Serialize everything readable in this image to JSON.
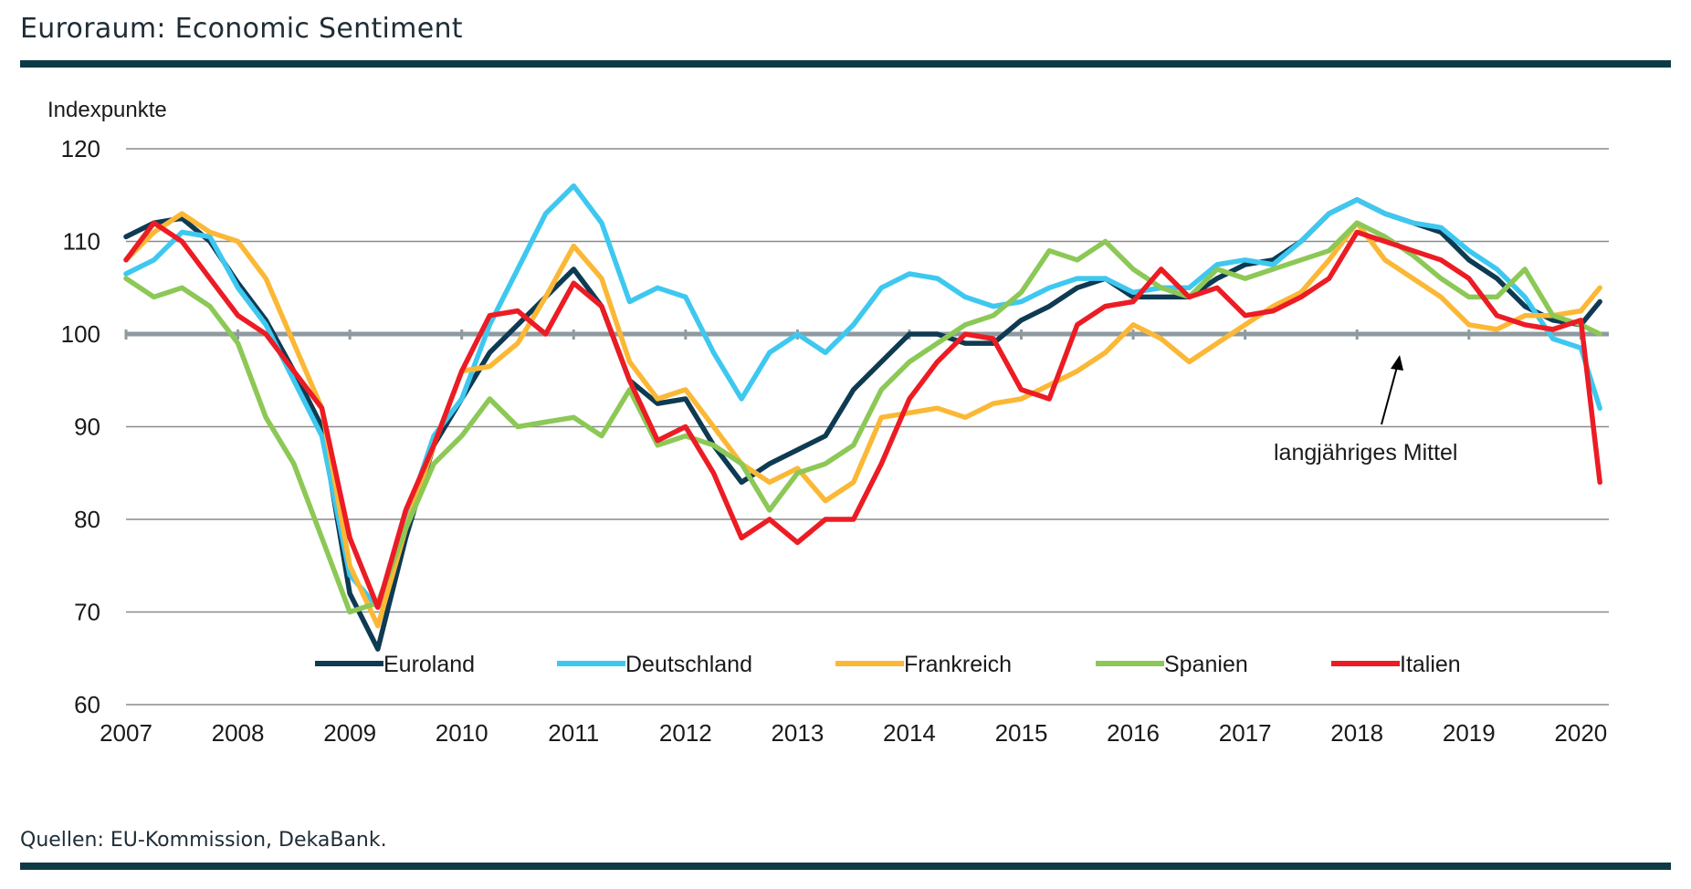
{
  "header": {
    "title": "Euroraum: Economic Sentiment"
  },
  "footer": {
    "source": "Quellen: EU-Kommission, DekaBank."
  },
  "chart_data": {
    "type": "line",
    "title": "Euroraum: Economic Sentiment",
    "ylabel": "Indexpunkte",
    "xlabel": "",
    "ylim": [
      60,
      120
    ],
    "xlim": [
      2007.0,
      2020.25
    ],
    "yticks": [
      60,
      70,
      80,
      90,
      100,
      110,
      120
    ],
    "xticks": [
      "2007",
      "2008",
      "2009",
      "2010",
      "2011",
      "2012",
      "2013",
      "2014",
      "2015",
      "2016",
      "2017",
      "2018",
      "2019",
      "2020"
    ],
    "grid": true,
    "legend_placement": "bottom",
    "reference_line": {
      "value": 100,
      "label": "langjähriges Mittel"
    },
    "x": [
      2007.0,
      2007.25,
      2007.5,
      2007.75,
      2008.0,
      2008.25,
      2008.5,
      2008.75,
      2009.0,
      2009.25,
      2009.5,
      2009.75,
      2010.0,
      2010.25,
      2010.5,
      2010.75,
      2011.0,
      2011.25,
      2011.5,
      2011.75,
      2012.0,
      2012.25,
      2012.5,
      2012.75,
      2013.0,
      2013.25,
      2013.5,
      2013.75,
      2014.0,
      2014.25,
      2014.5,
      2014.75,
      2015.0,
      2015.25,
      2015.5,
      2015.75,
      2016.0,
      2016.25,
      2016.5,
      2016.75,
      2017.0,
      2017.25,
      2017.5,
      2017.75,
      2018.0,
      2018.25,
      2018.5,
      2018.75,
      2019.0,
      2019.25,
      2019.5,
      2019.75,
      2020.0,
      2020.17
    ],
    "series": [
      {
        "name": "Euroland",
        "color": "#0e3a52",
        "values": [
          110.5,
          112,
          112.5,
          110,
          105.5,
          101.5,
          96,
          90,
          72,
          66,
          78,
          88,
          93,
          98,
          101,
          104,
          107,
          103,
          95,
          92.5,
          93,
          88,
          84,
          86,
          87.5,
          89,
          94,
          97,
          100,
          100,
          99,
          99,
          101.5,
          103,
          105,
          106,
          104,
          104,
          104,
          106,
          107.5,
          108,
          110,
          113,
          114.5,
          113,
          112,
          111,
          108,
          106,
          103,
          101.5,
          101,
          103.5
        ]
      },
      {
        "name": "Deutschland",
        "color": "#3ec8f0",
        "values": [
          106.5,
          108,
          111,
          110.5,
          105,
          101,
          95,
          89,
          74,
          70.5,
          80,
          89,
          93,
          101,
          107,
          113,
          116,
          112,
          103.5,
          105,
          104,
          98,
          93,
          98,
          100,
          98,
          101,
          105,
          106.5,
          106,
          104,
          103,
          103.5,
          105,
          106,
          106,
          104.5,
          105,
          105,
          107.5,
          108,
          107.5,
          110,
          113,
          114.5,
          113,
          112,
          111.5,
          109,
          107,
          104,
          99.5,
          98.5,
          92
        ]
      },
      {
        "name": "Frankreich",
        "color": "#fbb836",
        "values": [
          108,
          111,
          113,
          111,
          110,
          106,
          99,
          92,
          75,
          68.5,
          79,
          88,
          96,
          96.5,
          99,
          104,
          109.5,
          106,
          97,
          93,
          94,
          90,
          86,
          84,
          85.5,
          82,
          84,
          91,
          91.5,
          92,
          91,
          92.5,
          93,
          94.5,
          96,
          98,
          101,
          99.5,
          97,
          99,
          101,
          103,
          104.5,
          108,
          112,
          108,
          106,
          104,
          101,
          100.5,
          102,
          102,
          102.5,
          105
        ]
      },
      {
        "name": "Spanien",
        "color": "#8cc856",
        "values": [
          106,
          104,
          105,
          103,
          99,
          91,
          86,
          78,
          70,
          71,
          79,
          86,
          89,
          93,
          90,
          90.5,
          91,
          89,
          94,
          88,
          89,
          88,
          86,
          81,
          85,
          86,
          88,
          94,
          97,
          99,
          101,
          102,
          104.5,
          109,
          108,
          110,
          107,
          105,
          104,
          107,
          106,
          107,
          108,
          109,
          112,
          110.5,
          108.5,
          106,
          104,
          104,
          107,
          102,
          101,
          100
        ]
      },
      {
        "name": "Italien",
        "color": "#ec1c24",
        "values": [
          108,
          112,
          110,
          106,
          102,
          100,
          96,
          92,
          78,
          70.5,
          81,
          88,
          96,
          102,
          102.5,
          100,
          105.5,
          103,
          95,
          88.5,
          90,
          85,
          78,
          80,
          77.5,
          80,
          80,
          86,
          93,
          97,
          100,
          99.5,
          94,
          93,
          101,
          103,
          103.5,
          107,
          104,
          105,
          102,
          102.5,
          104,
          106,
          111,
          110,
          109,
          108,
          106,
          102,
          101,
          100.5,
          101.5,
          84
        ]
      }
    ]
  }
}
